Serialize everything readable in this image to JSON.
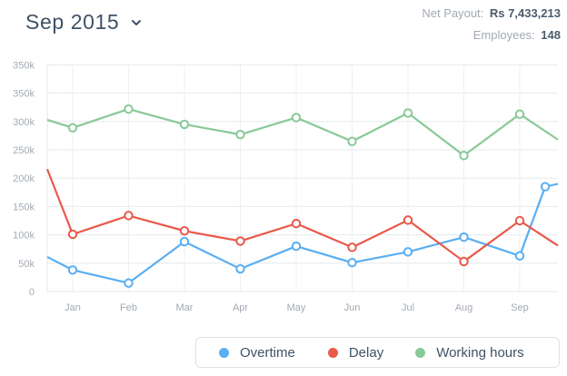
{
  "header": {
    "period": "Sep 2015",
    "stats": [
      {
        "label": "Net Payout:",
        "value": "Rs 7,433,213"
      },
      {
        "label": "Employees:",
        "value": "148"
      }
    ]
  },
  "chart_data": {
    "type": "line",
    "categories": [
      "Jan",
      "Feb",
      "Mar",
      "Apr",
      "May",
      "Jun",
      "Jul",
      "Aug",
      "Sep"
    ],
    "y_ticks": [
      "0",
      "50k",
      "100k",
      "150k",
      "200k",
      "250k",
      "300k",
      "350k",
      "350k"
    ],
    "ylim": [
      0,
      400000
    ],
    "grid": true,
    "legend_position": "bottom-right",
    "series": [
      {
        "name": "Overtime",
        "color": "#5aaef2",
        "values": [
          38000,
          15000,
          88000,
          40000,
          80000,
          51000,
          70000,
          96000,
          63000
        ],
        "start_value": 61000,
        "end_values": [
          185000,
          190000
        ]
      },
      {
        "name": "Delay",
        "color": "#e8594a",
        "values": [
          101000,
          134000,
          107000,
          89000,
          120000,
          78000,
          126000,
          53000,
          125000
        ],
        "start_value": 216000,
        "end_values": [
          81000
        ]
      },
      {
        "name": "Working hours",
        "color": "#88c997",
        "values": [
          289000,
          322000,
          295000,
          277000,
          307000,
          265000,
          315000,
          240000,
          313000
        ],
        "start_value": 303000,
        "end_values": [
          268000
        ]
      }
    ]
  }
}
